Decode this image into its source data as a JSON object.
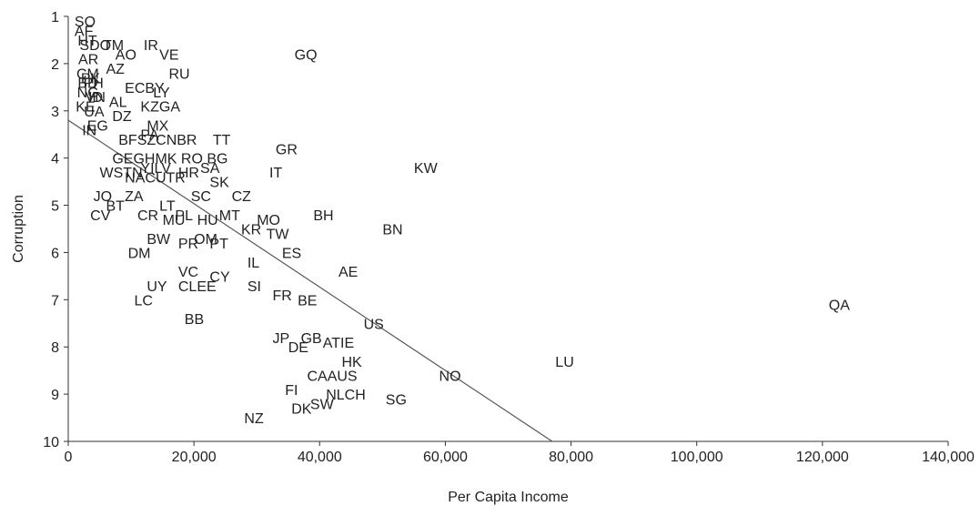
{
  "chart_data": {
    "type": "scatter",
    "xlabel": "Per Capita Income",
    "ylabel": "Corruption",
    "xlim": [
      0,
      140000
    ],
    "ylim": [
      1,
      10
    ],
    "y_inverted": true,
    "grid": false,
    "x_ticks": [
      0,
      20000,
      40000,
      60000,
      80000,
      100000,
      120000,
      140000
    ],
    "x_tick_labels": [
      "0",
      "20,000",
      "40,000",
      "60,000",
      "80,000",
      "100,000",
      "120,000",
      "140,000"
    ],
    "y_ticks": [
      1,
      2,
      3,
      4,
      5,
      6,
      7,
      8,
      9,
      10
    ],
    "y_tick_labels": [
      "1",
      "2",
      "3",
      "4",
      "5",
      "6",
      "7",
      "8",
      "9",
      "10"
    ],
    "trend_line": {
      "x": [
        0,
        77000
      ],
      "y": [
        3.2,
        10
      ]
    },
    "points": [
      {
        "label": "SO",
        "x": 1000,
        "y": 1.1
      },
      {
        "label": "AF",
        "x": 1000,
        "y": 1.3
      },
      {
        "label": "SDO",
        "x": 1800,
        "y": 1.6
      },
      {
        "label": "TM",
        "x": 5500,
        "y": 1.6
      },
      {
        "label": "IR",
        "x": 12000,
        "y": 1.6
      },
      {
        "label": "AO",
        "x": 7500,
        "y": 1.8
      },
      {
        "label": "VE",
        "x": 14500,
        "y": 1.8
      },
      {
        "label": "GQ",
        "x": 36000,
        "y": 1.8
      },
      {
        "label": "AZ",
        "x": 6000,
        "y": 2.1
      },
      {
        "label": "RU",
        "x": 16000,
        "y": 2.2
      },
      {
        "label": "ECBY",
        "x": 9000,
        "y": 2.5
      },
      {
        "label": "LY",
        "x": 13500,
        "y": 2.6
      },
      {
        "label": "AL",
        "x": 6500,
        "y": 2.8
      },
      {
        "label": "KZGA",
        "x": 11500,
        "y": 2.9
      },
      {
        "label": "DZ",
        "x": 7000,
        "y": 3.1
      },
      {
        "label": "MX",
        "x": 12500,
        "y": 3.3
      },
      {
        "label": "PA",
        "x": 11500,
        "y": 3.5
      },
      {
        "label": "BFSZCNBR",
        "x": 8000,
        "y": 3.6
      },
      {
        "label": "TT",
        "x": 23000,
        "y": 3.6
      },
      {
        "label": "GR",
        "x": 33000,
        "y": 3.8
      },
      {
        "label": "GEGHMK RO BG",
        "x": 7000,
        "y": 4.0
      },
      {
        "label": "SA",
        "x": 21000,
        "y": 4.2
      },
      {
        "label": "KW",
        "x": 55000,
        "y": 4.2
      },
      {
        "label": "YILV",
        "x": 11500,
        "y": 4.2
      },
      {
        "label": "WSTN",
        "x": 5000,
        "y": 4.3
      },
      {
        "label": "HR",
        "x": 17500,
        "y": 4.3
      },
      {
        "label": "IT",
        "x": 32000,
        "y": 4.3
      },
      {
        "label": "NACUTR",
        "x": 9000,
        "y": 4.4
      },
      {
        "label": "SK",
        "x": 22500,
        "y": 4.5
      },
      {
        "label": "JO",
        "x": 4000,
        "y": 4.8
      },
      {
        "label": "ZA",
        "x": 9000,
        "y": 4.8
      },
      {
        "label": "SC",
        "x": 19500,
        "y": 4.8
      },
      {
        "label": "CZ",
        "x": 26000,
        "y": 4.8
      },
      {
        "label": "BT",
        "x": 6000,
        "y": 5.0
      },
      {
        "label": "LT",
        "x": 14500,
        "y": 5.0
      },
      {
        "label": "CV",
        "x": 3500,
        "y": 5.2
      },
      {
        "label": "CR",
        "x": 11000,
        "y": 5.2
      },
      {
        "label": "PL",
        "x": 17000,
        "y": 5.2
      },
      {
        "label": "MT",
        "x": 24000,
        "y": 5.2
      },
      {
        "label": "BH",
        "x": 39000,
        "y": 5.2
      },
      {
        "label": "MU",
        "x": 15000,
        "y": 5.3
      },
      {
        "label": "HU",
        "x": 20500,
        "y": 5.3
      },
      {
        "label": "MO",
        "x": 30000,
        "y": 5.3
      },
      {
        "label": "KR",
        "x": 27500,
        "y": 5.5
      },
      {
        "label": "BN",
        "x": 50000,
        "y": 5.5
      },
      {
        "label": "TW",
        "x": 31500,
        "y": 5.6
      },
      {
        "label": "BW",
        "x": 12500,
        "y": 5.7
      },
      {
        "label": "OM",
        "x": 20000,
        "y": 5.7
      },
      {
        "label": "PR",
        "x": 17500,
        "y": 5.8
      },
      {
        "label": "PT",
        "x": 22500,
        "y": 5.8
      },
      {
        "label": "DM",
        "x": 9500,
        "y": 6.0
      },
      {
        "label": "ES",
        "x": 34000,
        "y": 6.0
      },
      {
        "label": "IL",
        "x": 28500,
        "y": 6.2
      },
      {
        "label": "VC",
        "x": 17500,
        "y": 6.4
      },
      {
        "label": "AE",
        "x": 43000,
        "y": 6.4
      },
      {
        "label": "CY",
        "x": 22500,
        "y": 6.5
      },
      {
        "label": "UY",
        "x": 12500,
        "y": 6.7
      },
      {
        "label": "CLEE",
        "x": 17500,
        "y": 6.7
      },
      {
        "label": "SI",
        "x": 28500,
        "y": 6.7
      },
      {
        "label": "FR",
        "x": 32500,
        "y": 6.9
      },
      {
        "label": "BE",
        "x": 36500,
        "y": 7.0
      },
      {
        "label": "LC",
        "x": 10500,
        "y": 7.0
      },
      {
        "label": "QA",
        "x": 121000,
        "y": 7.1
      },
      {
        "label": "BB",
        "x": 18500,
        "y": 7.4
      },
      {
        "label": "US",
        "x": 47000,
        "y": 7.5
      },
      {
        "label": "JP",
        "x": 32500,
        "y": 7.8
      },
      {
        "label": "GB",
        "x": 37000,
        "y": 7.8
      },
      {
        "label": "ATIE",
        "x": 40500,
        "y": 7.9
      },
      {
        "label": "DE",
        "x": 35000,
        "y": 8.0
      },
      {
        "label": "HK",
        "x": 43500,
        "y": 8.3
      },
      {
        "label": "LU",
        "x": 77500,
        "y": 8.3
      },
      {
        "label": "CAAUS",
        "x": 38000,
        "y": 8.6
      },
      {
        "label": "NO",
        "x": 59000,
        "y": 8.6
      },
      {
        "label": "FI",
        "x": 34500,
        "y": 8.9
      },
      {
        "label": "NLCH",
        "x": 41000,
        "y": 9.0
      },
      {
        "label": "SG",
        "x": 50500,
        "y": 9.1
      },
      {
        "label": "SW",
        "x": 38500,
        "y": 9.2
      },
      {
        "label": "DK",
        "x": 35500,
        "y": 9.3
      },
      {
        "label": "NZ",
        "x": 28000,
        "y": 9.5
      },
      {
        "label": "AR",
        "x": 1600,
        "y": 1.9
      },
      {
        "label": "HT",
        "x": 1500,
        "y": 1.5
      },
      {
        "label": "CM",
        "x": 1300,
        "y": 2.2
      },
      {
        "label": "PH",
        "x": 2400,
        "y": 2.4
      },
      {
        "label": "NG",
        "x": 1400,
        "y": 2.6
      },
      {
        "label": "KE",
        "x": 1200,
        "y": 2.9
      },
      {
        "label": "UA",
        "x": 2500,
        "y": 3.0
      },
      {
        "label": "EG",
        "x": 3000,
        "y": 3.3
      },
      {
        "label": "IN",
        "x": 2200,
        "y": 3.4
      },
      {
        "label": "ID",
        "x": 3200,
        "y": 2.7
      },
      {
        "label": "VN",
        "x": 2700,
        "y": 2.7
      },
      {
        "label": "PK",
        "x": 2000,
        "y": 2.3
      },
      {
        "label": "BD",
        "x": 1500,
        "y": 2.4
      }
    ]
  }
}
